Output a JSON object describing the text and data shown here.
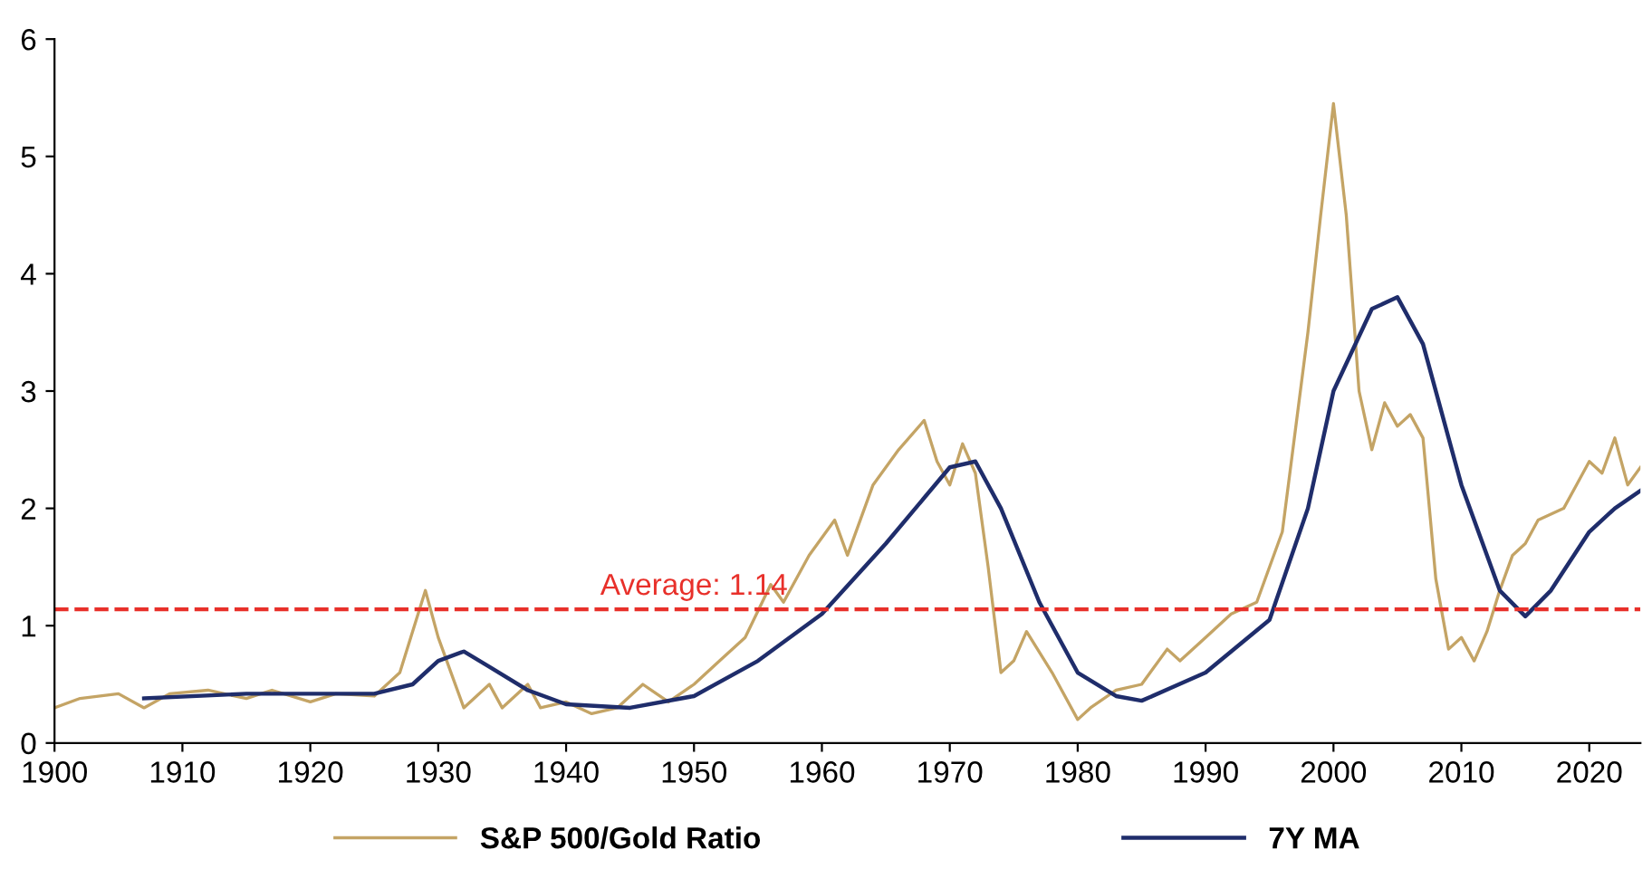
{
  "chart_data": {
    "type": "line",
    "xlim": [
      1900,
      2024
    ],
    "xticks": [
      1900,
      1910,
      1920,
      1930,
      1940,
      1950,
      1960,
      1970,
      1980,
      1990,
      2000,
      2010,
      2020
    ],
    "ylim": [
      0,
      6
    ],
    "yticks": [
      0,
      1,
      2,
      3,
      4,
      5,
      6
    ],
    "grid": false,
    "legend": "bottom",
    "ref_lines": [
      {
        "axis": "y",
        "value": 1.14,
        "label": "Average: 1.14",
        "color": "#e8302a",
        "line_style": "dashed"
      }
    ],
    "series": [
      {
        "name": "S&P 500/Gold Ratio",
        "color": "#c4a465",
        "x": [
          1900,
          1902,
          1905,
          1907,
          1909,
          1912,
          1915,
          1917,
          1920,
          1922,
          1925,
          1927,
          1929,
          1930,
          1932,
          1934,
          1935,
          1937,
          1938,
          1940,
          1942,
          1944,
          1946,
          1948,
          1950,
          1952,
          1954,
          1956,
          1957,
          1959,
          1961,
          1962,
          1964,
          1966,
          1968,
          1969,
          1970,
          1971,
          1972,
          1973,
          1974,
          1975,
          1976,
          1978,
          1980,
          1981,
          1983,
          1985,
          1987,
          1988,
          1990,
          1992,
          1994,
          1996,
          1998,
          1999,
          2000,
          2001,
          2002,
          2003,
          2004,
          2005,
          2006,
          2007,
          2008,
          2009,
          2010,
          2011,
          2012,
          2013,
          2014,
          2015,
          2016,
          2018,
          2019,
          2020,
          2021,
          2022,
          2023,
          2024
        ],
        "values": [
          0.3,
          0.38,
          0.42,
          0.3,
          0.42,
          0.45,
          0.38,
          0.45,
          0.35,
          0.42,
          0.4,
          0.6,
          1.3,
          0.9,
          0.3,
          0.5,
          0.3,
          0.5,
          0.3,
          0.35,
          0.25,
          0.3,
          0.5,
          0.35,
          0.5,
          0.7,
          0.9,
          1.35,
          1.2,
          1.6,
          1.9,
          1.6,
          2.2,
          2.5,
          2.75,
          2.4,
          2.2,
          2.55,
          2.3,
          1.5,
          0.6,
          0.7,
          0.95,
          0.6,
          0.2,
          0.3,
          0.45,
          0.5,
          0.8,
          0.7,
          0.9,
          1.1,
          1.2,
          1.8,
          3.5,
          4.5,
          5.45,
          4.5,
          3.0,
          2.5,
          2.9,
          2.7,
          2.8,
          2.6,
          1.4,
          0.8,
          0.9,
          0.7,
          0.95,
          1.3,
          1.6,
          1.7,
          1.9,
          2.0,
          2.2,
          2.4,
          2.3,
          2.6,
          2.2,
          2.35
        ]
      },
      {
        "name": "7Y MA",
        "color": "#1f2d6b",
        "x": [
          1907,
          1915,
          1925,
          1928,
          1930,
          1932,
          1934,
          1937,
          1940,
          1945,
          1950,
          1955,
          1960,
          1965,
          1970,
          1972,
          1974,
          1977,
          1980,
          1983,
          1985,
          1990,
          1995,
          1998,
          2000,
          2003,
          2005,
          2007,
          2010,
          2013,
          2015,
          2017,
          2020,
          2022,
          2024
        ],
        "values": [
          0.38,
          0.42,
          0.42,
          0.5,
          0.7,
          0.78,
          0.65,
          0.45,
          0.33,
          0.3,
          0.4,
          0.7,
          1.1,
          1.7,
          2.35,
          2.4,
          2.0,
          1.2,
          0.6,
          0.4,
          0.36,
          0.6,
          1.05,
          2.0,
          3.0,
          3.7,
          3.8,
          3.4,
          2.2,
          1.3,
          1.08,
          1.3,
          1.8,
          2.0,
          2.15
        ]
      }
    ]
  }
}
